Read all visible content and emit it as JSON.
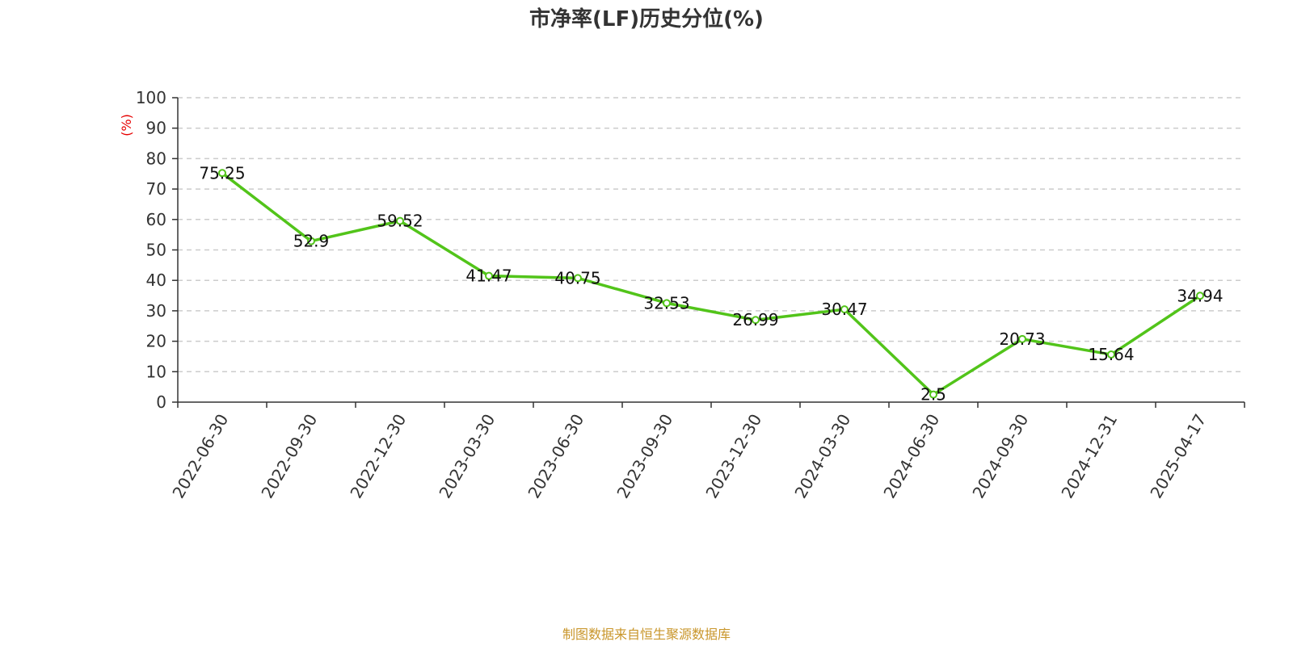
{
  "chart_data": {
    "type": "line",
    "title": "市净率(LF)历史分位(%)",
    "ylabel": "(%)",
    "xlabel": "",
    "ylim": [
      0,
      100
    ],
    "yticks": [
      0,
      10,
      20,
      30,
      40,
      50,
      60,
      70,
      80,
      90,
      100
    ],
    "grid": true,
    "categories": [
      "2022-06-30",
      "2022-09-30",
      "2022-12-30",
      "2023-03-30",
      "2023-06-30",
      "2023-09-30",
      "2023-12-30",
      "2024-03-30",
      "2024-06-30",
      "2024-09-30",
      "2024-12-31",
      "2025-04-17"
    ],
    "series": [
      {
        "values": [
          75.25,
          52.9,
          59.52,
          41.47,
          40.75,
          32.53,
          26.99,
          30.47,
          2.5,
          20.73,
          15.64,
          34.94
        ],
        "labels": [
          "75.25",
          "52.9",
          "59.52",
          "41.47",
          "40.75",
          "32.53",
          "26.99",
          "30.47",
          "2.5",
          "20.73",
          "15.64",
          "34.94"
        ]
      }
    ]
  },
  "colors": {
    "line": "#52c41a",
    "unit_label": "#e60000",
    "source": "#c9962b",
    "grid": "#cccccc",
    "axis": "#333333"
  },
  "footer": {
    "source": "制图数据来自恒生聚源数据库"
  }
}
